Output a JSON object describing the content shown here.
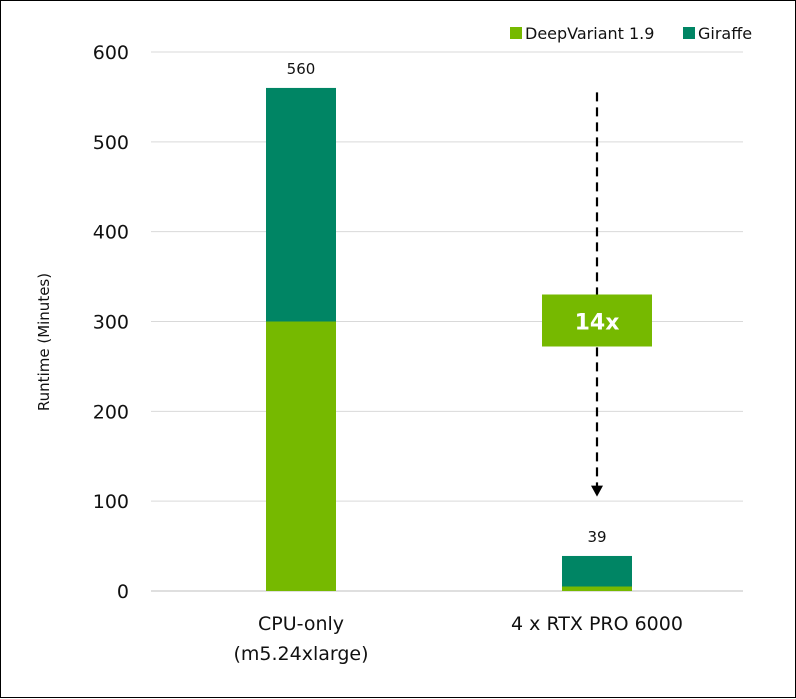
{
  "chart_data": {
    "type": "bar",
    "stacked": true,
    "title": "",
    "xlabel": "",
    "ylabel": "Runtime (Minutes)",
    "ylim": [
      0,
      600
    ],
    "yticks": [
      0,
      100,
      200,
      300,
      400,
      500,
      600
    ],
    "grid": true,
    "legend_position": "top-right",
    "categories": [
      [
        "CPU-only",
        "(m5.24xlarge)"
      ],
      [
        "4 x RTX PRO 6000"
      ]
    ],
    "series": [
      {
        "name": "DeepVariant 1.9",
        "color": "#76b900",
        "values": [
          300,
          5
        ]
      },
      {
        "name": "Giraffe",
        "color": "#008564",
        "values": [
          260,
          34
        ]
      }
    ],
    "totals": [
      560,
      39
    ],
    "annotation": {
      "text": "14x",
      "color": "#76b900",
      "from_category": 1,
      "from_value": 555,
      "to_value": 105,
      "label_value": 300
    }
  }
}
